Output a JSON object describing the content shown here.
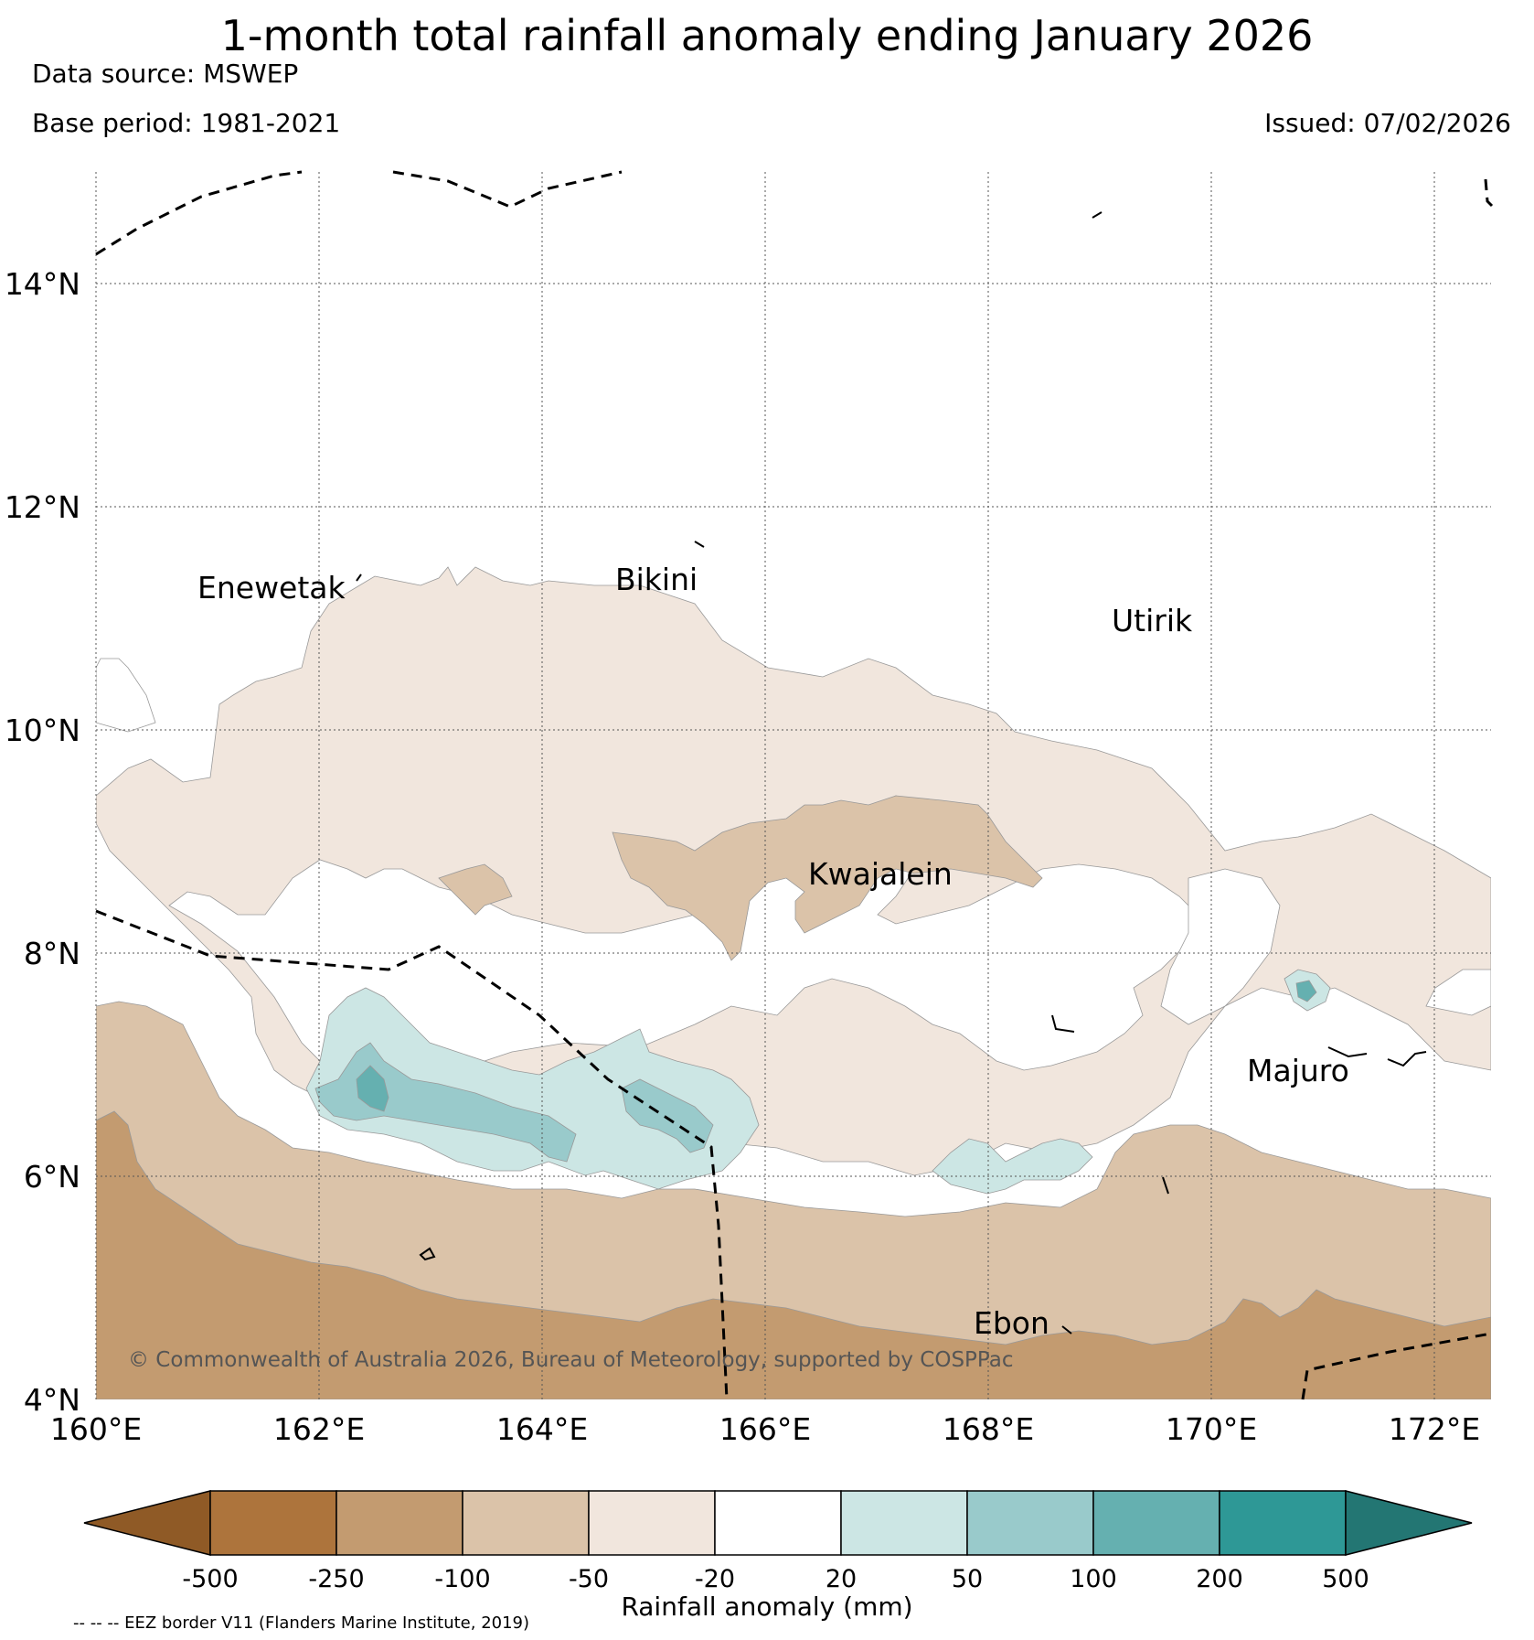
{
  "title": "1-month total rainfall anomaly ending January 2026",
  "data_source": "Data source: MSWEP",
  "base_period": "Base period: 1981-2021",
  "issued": "Issued: 07/02/2026",
  "copyright": "© Commonwealth of Australia 2026, Bureau of Meteorology, supported by COSPPac",
  "colorbar": {
    "label": "Rainfall anomaly (mm)",
    "ticks": [
      "-500",
      "-250",
      "-100",
      "-50",
      "-20",
      "20",
      "50",
      "100",
      "200",
      "500"
    ],
    "colors": [
      "#8f5a26",
      "#ad743c",
      "#c39b70",
      "#dbc3a9",
      "#f1e6dd",
      "#ffffff",
      "#cce6e4",
      "#99cacb",
      "#65b0b0",
      "#2e9896",
      "#237673"
    ]
  },
  "footnote": "-- -- -- EEZ border V11 (Flanders Marine Institute, 2019)",
  "axes": {
    "lon_labels": [
      "160°E",
      "162°E",
      "164°E",
      "166°E",
      "168°E",
      "170°E",
      "172°E"
    ],
    "lat_labels": [
      "4°N",
      "6°N",
      "8°N",
      "10°N",
      "12°N",
      "14°N"
    ]
  },
  "places": [
    {
      "name": "Enewetak"
    },
    {
      "name": "Bikini"
    },
    {
      "name": "Utirik"
    },
    {
      "name": "Kwajalein"
    },
    {
      "name": "Majuro"
    },
    {
      "name": "Ebon"
    }
  ]
}
